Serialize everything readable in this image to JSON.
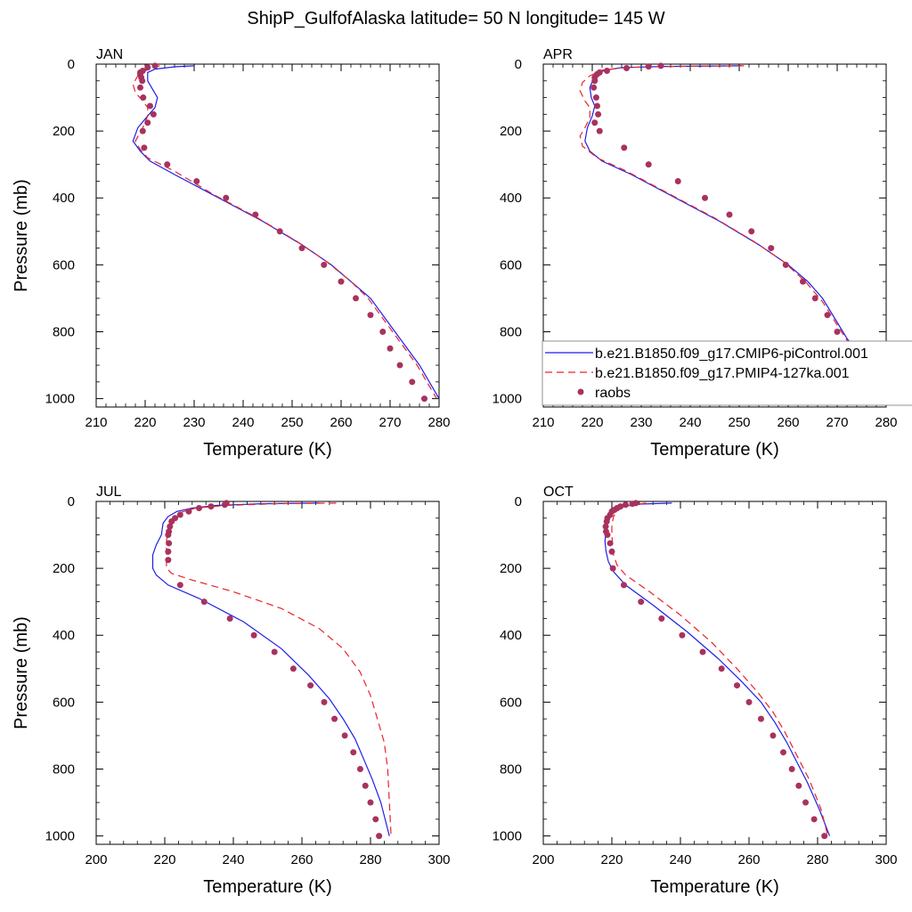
{
  "figure": {
    "title": "ShipP_GulfofAlaska  latitude= 50 N longitude= 145 W"
  },
  "colors": {
    "model_a": "#1f1fe6",
    "model_b": "#e8242c",
    "obs": "#a8325e",
    "axis": "#000000"
  },
  "legend": {
    "entries": [
      "b.e21.B1850.f09_g17.CMIP6-piControl.001",
      "b.e21.B1850.f09_g17.PMIP4-127ka.001",
      "raobs"
    ]
  },
  "chart_data": [
    {
      "type": "line",
      "title": "JAN",
      "xlabel": "Temperature (K)",
      "ylabel": "Pressure (mb)",
      "xlim": [
        210,
        280
      ],
      "ylim": [
        1025,
        0
      ],
      "xticks": [
        "210",
        "220",
        "230",
        "240",
        "250",
        "260",
        "270",
        "280"
      ],
      "yticks": [
        "0",
        "200",
        "400",
        "600",
        "800",
        "1000"
      ],
      "series": [
        {
          "name": "b.e21.B1850.f09_g17.CMIP6-piControl.001",
          "style": "solid",
          "x": [
            230,
            226,
            222,
            220.5,
            220.5,
            221.5,
            222.5,
            222,
            220.5,
            218.5,
            217.5,
            219,
            221,
            226,
            235,
            244,
            252,
            258,
            262,
            266,
            269,
            272,
            276,
            280
          ],
          "y": [
            5,
            8,
            15,
            25,
            50,
            75,
            100,
            130,
            155,
            190,
            230,
            260,
            290,
            330,
            400,
            470,
            540,
            600,
            650,
            700,
            760,
            820,
            900,
            1000
          ]
        },
        {
          "name": "b.e21.B1850.f09_g17.PMIP4-127ka.001",
          "style": "dashed",
          "x": [
            223,
            221.5,
            220,
            218.5,
            217.5,
            218,
            219.5,
            220.5,
            220.5,
            219.5,
            218,
            219,
            220.5,
            226,
            234,
            243,
            251,
            257,
            262,
            265.5,
            268.5,
            271.5,
            275.5,
            279.5
          ],
          "y": [
            5,
            10,
            20,
            35,
            60,
            85,
            110,
            130,
            155,
            190,
            230,
            255,
            280,
            320,
            390,
            460,
            530,
            590,
            650,
            700,
            760,
            820,
            900,
            1000
          ]
        },
        {
          "name": "raobs",
          "style": "markers",
          "x": [
            222,
            220.5,
            219.5,
            219,
            219,
            219.2,
            219.4,
            219,
            219.6,
            221,
            221.7,
            220.5,
            219.5,
            219.8,
            224.5,
            230.5,
            236.5,
            242.5,
            247.5,
            252,
            256.5,
            260,
            263,
            266,
            268.5,
            270,
            272,
            274.5,
            277
          ],
          "y": [
            5,
            10,
            20,
            25,
            30,
            40,
            50,
            70,
            100,
            125,
            150,
            175,
            200,
            250,
            300,
            350,
            400,
            450,
            500,
            550,
            600,
            650,
            700,
            750,
            800,
            850,
            900,
            950,
            1000
          ]
        }
      ]
    },
    {
      "type": "line",
      "title": "APR",
      "xlabel": "Temperature (K)",
      "ylabel": "",
      "xlim": [
        210,
        280
      ],
      "ylim": [
        1025,
        0
      ],
      "xticks": [
        "210",
        "220",
        "230",
        "240",
        "250",
        "260",
        "270",
        "280"
      ],
      "yticks": [
        "0",
        "200",
        "400",
        "600",
        "800",
        "1000"
      ],
      "series": [
        {
          "name": "b.e21.B1850.f09_g17.CMIP6-piControl.001",
          "style": "solid",
          "x": [
            250.5,
            235,
            226,
            222.5,
            220.5,
            219.5,
            219.8,
            220.5,
            220,
            219,
            218.5,
            219.5,
            222,
            228,
            237,
            246,
            254,
            260,
            264,
            267,
            269.5,
            272,
            276,
            279.5
          ],
          "y": [
            5,
            7,
            10,
            18,
            35,
            70,
            100,
            125,
            155,
            190,
            230,
            260,
            290,
            330,
            400,
            470,
            540,
            600,
            650,
            700,
            760,
            820,
            900,
            1000
          ]
        },
        {
          "name": "b.e21.B1850.f09_g17.PMIP4-127ka.001",
          "style": "dashed",
          "x": [
            251,
            236,
            227,
            222,
            219.5,
            218,
            217.5,
            218.5,
            219.5,
            219.5,
            218.5,
            217.5,
            218,
            221,
            227,
            236,
            245,
            253,
            259,
            263.5,
            267,
            270,
            273.5,
            278
          ],
          "y": [
            5,
            7,
            10,
            18,
            35,
            55,
            80,
            110,
            130,
            160,
            190,
            215,
            245,
            280,
            320,
            390,
            460,
            530,
            590,
            650,
            710,
            780,
            860,
            1000
          ]
        },
        {
          "name": "raobs",
          "style": "markers",
          "x": [
            234,
            231.5,
            227,
            223,
            221.5,
            221,
            220.5,
            220.5,
            220.3,
            220.8,
            221,
            221.2,
            220.5,
            221.5,
            226.5,
            231.5,
            237.5,
            243,
            248,
            252.5,
            256.5,
            259.5,
            263,
            265.5,
            268,
            270,
            272,
            275,
            277.5
          ],
          "y": [
            5,
            7,
            12,
            20,
            25,
            30,
            40,
            50,
            70,
            100,
            125,
            150,
            175,
            200,
            250,
            300,
            350,
            400,
            450,
            500,
            550,
            600,
            650,
            700,
            750,
            800,
            850,
            900,
            1000
          ]
        }
      ]
    },
    {
      "type": "line",
      "title": "JUL",
      "xlabel": "Temperature (K)",
      "ylabel": "Pressure (mb)",
      "xlim": [
        200,
        300
      ],
      "ylim": [
        1025,
        0
      ],
      "xticks": [
        "200",
        "220",
        "240",
        "260",
        "280",
        "300"
      ],
      "yticks": [
        "0",
        "200",
        "400",
        "600",
        "800",
        "1000"
      ],
      "series": [
        {
          "name": "b.e21.B1850.f09_g17.CMIP6-piControl.001",
          "style": "solid",
          "x": [
            265,
            248,
            235,
            228,
            223.5,
            221,
            219.5,
            219,
            217.5,
            216.5,
            216.5,
            217.5,
            221,
            230,
            243,
            254,
            262,
            268,
            272,
            275.5,
            278,
            280.5,
            283,
            285.5
          ],
          "y": [
            5,
            7,
            12,
            20,
            30,
            45,
            65,
            100,
            130,
            160,
            200,
            220,
            250,
            290,
            360,
            440,
            520,
            590,
            650,
            710,
            770,
            830,
            900,
            1000
          ]
        },
        {
          "name": "b.e21.B1850.f09_g17.PMIP4-127ka.001",
          "style": "dashed",
          "x": [
            270,
            252,
            238,
            229,
            224,
            222,
            221,
            220.5,
            220.5,
            220.5,
            222,
            228,
            240,
            254,
            265,
            272,
            277,
            280,
            282,
            284,
            285,
            286
          ],
          "y": [
            5,
            7,
            12,
            20,
            35,
            55,
            80,
            120,
            160,
            200,
            215,
            235,
            270,
            320,
            380,
            440,
            510,
            580,
            650,
            720,
            800,
            1000
          ]
        },
        {
          "name": "raobs",
          "style": "markers",
          "x": [
            238,
            237.5,
            233.5,
            230,
            227,
            224.5,
            223,
            222,
            221.5,
            221.2,
            221,
            221.2,
            221,
            221,
            224.5,
            231.5,
            239,
            246,
            252,
            257.5,
            262.5,
            266.5,
            269.5,
            272.5,
            275,
            277,
            278.5,
            280,
            281.5,
            282.5
          ],
          "y": [
            5,
            10,
            15,
            20,
            30,
            40,
            50,
            60,
            75,
            90,
            100,
            125,
            150,
            175,
            250,
            300,
            350,
            400,
            450,
            500,
            550,
            600,
            650,
            700,
            750,
            800,
            850,
            900,
            950,
            1000
          ]
        }
      ]
    },
    {
      "type": "line",
      "title": "OCT",
      "xlabel": "Temperature (K)",
      "ylabel": "",
      "xlim": [
        200,
        300
      ],
      "ylim": [
        1025,
        0
      ],
      "xticks": [
        "200",
        "220",
        "240",
        "260",
        "280",
        "300"
      ],
      "yticks": [
        "0",
        "200",
        "400",
        "600",
        "800",
        "1000"
      ],
      "series": [
        {
          "name": "b.e21.B1850.f09_g17.CMIP6-piControl.001",
          "style": "solid",
          "x": [
            237.5,
            228,
            223,
            221,
            219.5,
            218.5,
            218.2,
            218,
            218.3,
            219,
            220.5,
            224,
            232,
            242,
            251,
            258,
            263.5,
            267.5,
            271,
            274,
            277,
            280.5,
            283.5
          ],
          "y": [
            5,
            8,
            15,
            25,
            40,
            60,
            90,
            120,
            150,
            180,
            210,
            250,
            310,
            390,
            470,
            540,
            600,
            660,
            720,
            780,
            840,
            920,
            1000
          ]
        },
        {
          "name": "b.e21.B1850.f09_g17.PMIP4-127ka.001",
          "style": "dashed",
          "x": [
            230,
            226,
            223,
            221.5,
            220.5,
            220,
            220,
            220.2,
            220.5,
            221.5,
            224,
            231,
            240,
            249,
            256.5,
            262.5,
            267,
            270.5,
            274,
            277.5,
            281,
            283
          ],
          "y": [
            5,
            10,
            18,
            30,
            45,
            70,
            100,
            130,
            160,
            190,
            220,
            270,
            340,
            420,
            500,
            570,
            630,
            690,
            760,
            830,
            920,
            1000
          ]
        },
        {
          "name": "raobs",
          "style": "markers",
          "x": [
            227,
            226,
            224,
            222.5,
            221.5,
            220.8,
            220,
            219.5,
            218.7,
            218.5,
            218.2,
            218.3,
            218.7,
            219.5,
            220,
            220.3,
            223.5,
            228.5,
            234.5,
            240.5,
            246.5,
            252,
            256.5,
            260,
            263.5,
            267,
            270,
            272.5,
            274.5,
            276.5,
            279,
            282
          ],
          "y": [
            5,
            7,
            10,
            15,
            20,
            25,
            30,
            40,
            50,
            60,
            75,
            90,
            100,
            125,
            150,
            200,
            250,
            300,
            350,
            400,
            450,
            500,
            550,
            600,
            650,
            700,
            750,
            800,
            850,
            900,
            950,
            1000
          ]
        }
      ]
    }
  ]
}
